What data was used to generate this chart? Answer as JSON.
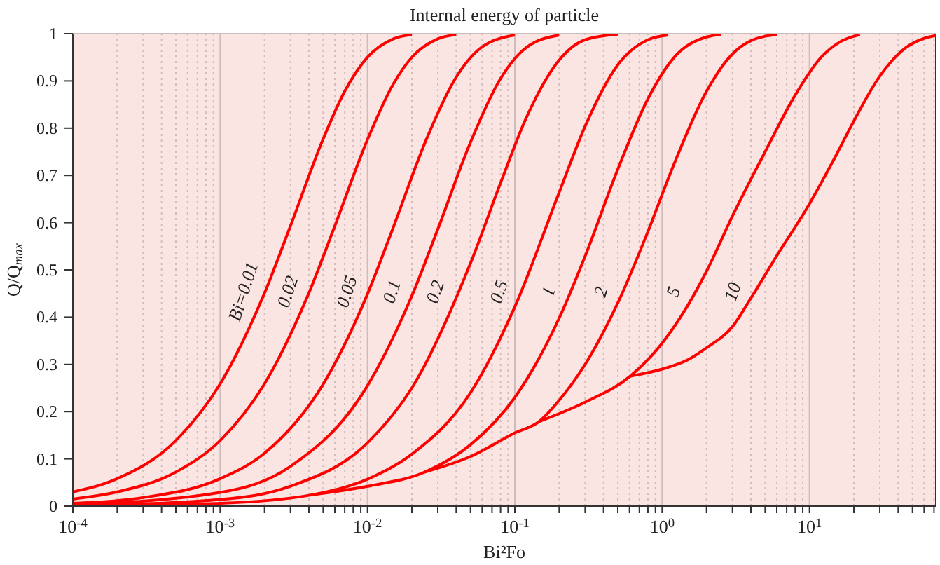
{
  "chart_data": {
    "type": "line",
    "title": "Internal energy of particle",
    "xlabel": "Bi²Fo",
    "ylabel": "Q/Q$_{max}$",
    "log": "x",
    "grid": true,
    "xlim": [
      0.0001,
      72
    ],
    "ylim": [
      0,
      1
    ],
    "xticks": [
      {
        "value": 0.0001,
        "label": "10$^{-4}$"
      },
      {
        "value": 0.0002,
        "label": null
      },
      {
        "value": 0.0003,
        "label": null
      },
      {
        "value": 0.0004,
        "label": null
      },
      {
        "value": 0.0005,
        "label": null
      },
      {
        "value": 0.0006,
        "label": null
      },
      {
        "value": 0.0007,
        "label": null
      },
      {
        "value": 0.0008,
        "label": null
      },
      {
        "value": 0.0009,
        "label": null
      },
      {
        "value": 0.001,
        "label": "10$^{-3}$"
      },
      {
        "value": 0.002,
        "label": null
      },
      {
        "value": 0.003,
        "label": null
      },
      {
        "value": 0.004,
        "label": null
      },
      {
        "value": 0.005,
        "label": null
      },
      {
        "value": 0.006,
        "label": null
      },
      {
        "value": 0.007,
        "label": null
      },
      {
        "value": 0.008,
        "label": null
      },
      {
        "value": 0.009,
        "label": null
      },
      {
        "value": 0.01,
        "label": "10$^{-2}$"
      },
      {
        "value": 0.02,
        "label": null
      },
      {
        "value": 0.03,
        "label": null
      },
      {
        "value": 0.04,
        "label": null
      },
      {
        "value": 0.05,
        "label": null
      },
      {
        "value": 0.06,
        "label": null
      },
      {
        "value": 0.07,
        "label": null
      },
      {
        "value": 0.08,
        "label": null
      },
      {
        "value": 0.09,
        "label": null
      },
      {
        "value": 0.1,
        "label": "10$^{-1}$"
      },
      {
        "value": 0.2,
        "label": null
      },
      {
        "value": 0.3,
        "label": null
      },
      {
        "value": 0.4,
        "label": null
      },
      {
        "value": 0.5,
        "label": null
      },
      {
        "value": 0.6,
        "label": null
      },
      {
        "value": 0.7,
        "label": null
      },
      {
        "value": 0.8,
        "label": null
      },
      {
        "value": 0.9,
        "label": null
      },
      {
        "value": 1,
        "label": "10$^{0}$"
      },
      {
        "value": 2,
        "label": null
      },
      {
        "value": 3,
        "label": null
      },
      {
        "value": 4,
        "label": null
      },
      {
        "value": 5,
        "label": null
      },
      {
        "value": 6,
        "label": null
      },
      {
        "value": 7,
        "label": null
      },
      {
        "value": 8,
        "label": null
      },
      {
        "value": 9,
        "label": null
      },
      {
        "value": 10,
        "label": "10$^{1}$"
      },
      {
        "value": 20,
        "label": null
      },
      {
        "value": 30,
        "label": null
      },
      {
        "value": 40,
        "label": null
      },
      {
        "value": 50,
        "label": null
      },
      {
        "value": 60,
        "label": null
      },
      {
        "value": 70,
        "label": null
      }
    ],
    "yticks": [
      0,
      0.1,
      0.2,
      0.3,
      0.4,
      0.5,
      0.6,
      0.7,
      0.8,
      0.9,
      1
    ],
    "series": [
      {
        "name": "Bi=0.01",
        "color": "#ff0000",
        "x": [
          0.0001,
          0.0002,
          0.0005,
          0.001,
          0.002,
          0.003,
          0.005,
          0.007,
          0.01,
          0.015,
          0.02
        ],
        "values": [
          0.03,
          0.058,
          0.139,
          0.259,
          0.451,
          0.593,
          0.777,
          0.878,
          0.95,
          0.989,
          0.998
        ]
      },
      {
        "name": "0.02",
        "color": "#ff0000",
        "x": [
          0.0001,
          0.0002,
          0.0005,
          0.001,
          0.002,
          0.004,
          0.006,
          0.01,
          0.015,
          0.02,
          0.03,
          0.04
        ],
        "values": [
          0.015,
          0.03,
          0.072,
          0.139,
          0.259,
          0.451,
          0.593,
          0.776,
          0.894,
          0.95,
          0.989,
          0.998
        ]
      },
      {
        "name": "0.05",
        "color": "#ff0000",
        "x": [
          0.0001,
          0.0003,
          0.001,
          0.002,
          0.005,
          0.01,
          0.015,
          0.025,
          0.04,
          0.06,
          0.1
        ],
        "values": [
          0.006,
          0.018,
          0.058,
          0.112,
          0.258,
          0.449,
          0.591,
          0.775,
          0.908,
          0.972,
          0.997
        ]
      },
      {
        "name": "0.1",
        "color": "#ff0000",
        "x": [
          0.0001,
          0.001,
          0.003,
          0.01,
          0.02,
          0.03,
          0.05,
          0.08,
          0.12,
          0.2
        ],
        "values": [
          0.003,
          0.029,
          0.084,
          0.255,
          0.445,
          0.586,
          0.77,
          0.905,
          0.971,
          0.997
        ]
      },
      {
        "name": "0.2",
        "color": "#ff0000",
        "x": [
          0.0001,
          0.001,
          0.003,
          0.01,
          0.02,
          0.05,
          0.08,
          0.12,
          0.2,
          0.3,
          0.5
        ],
        "values": [
          0.001,
          0.014,
          0.042,
          0.134,
          0.25,
          0.514,
          0.684,
          0.823,
          0.944,
          0.987,
          0.999
        ]
      },
      {
        "name": "0.5",
        "color": "#ff0000",
        "x": [
          0.0001,
          0.001,
          0.0044,
          0.01,
          0.02,
          0.05,
          0.1,
          0.2,
          0.3,
          0.5,
          0.8,
          1.1
        ],
        "values": [
          0.001,
          0.006,
          0.025,
          0.057,
          0.11,
          0.24,
          0.422,
          0.664,
          0.804,
          0.934,
          0.987,
          0.997
        ]
      },
      {
        "name": "1",
        "color": "#ff0000",
        "x": [
          0.0044,
          0.01,
          0.0244,
          0.05,
          0.1,
          0.2,
          0.3,
          0.5,
          0.8,
          1.2,
          2,
          2.5
        ],
        "values": [
          0.025,
          0.042,
          0.072,
          0.13,
          0.23,
          0.398,
          0.529,
          0.713,
          0.862,
          0.949,
          0.993,
          0.998
        ]
      },
      {
        "name": "2",
        "color": "#ff0000",
        "x": [
          0.0244,
          0.05,
          0.1,
          0.146,
          0.2,
          0.3,
          0.5,
          0.8,
          1.2,
          2,
          3,
          4,
          6
        ],
        "values": [
          0.072,
          0.105,
          0.155,
          0.179,
          0.224,
          0.3,
          0.43,
          0.581,
          0.723,
          0.878,
          0.957,
          0.985,
          0.998
        ]
      },
      {
        "name": "5",
        "color": "#ff0000",
        "x": [
          0.146,
          0.3,
          0.607,
          1,
          1.5,
          2,
          3,
          5,
          8,
          12,
          16,
          22
        ],
        "values": [
          0.179,
          0.22,
          0.275,
          0.345,
          0.426,
          0.497,
          0.614,
          0.75,
          0.87,
          0.95,
          0.982,
          0.998
        ]
      },
      {
        "name": "10",
        "color": "#ff0000",
        "x": [
          0.607,
          1,
          1.5,
          2,
          3,
          4,
          6,
          10,
          15,
          20,
          30,
          45,
          60,
          72
        ],
        "values": [
          0.275,
          0.29,
          0.31,
          0.335,
          0.38,
          0.44,
          0.53,
          0.64,
          0.74,
          0.815,
          0.91,
          0.97,
          0.99,
          0.996
        ]
      }
    ]
  }
}
